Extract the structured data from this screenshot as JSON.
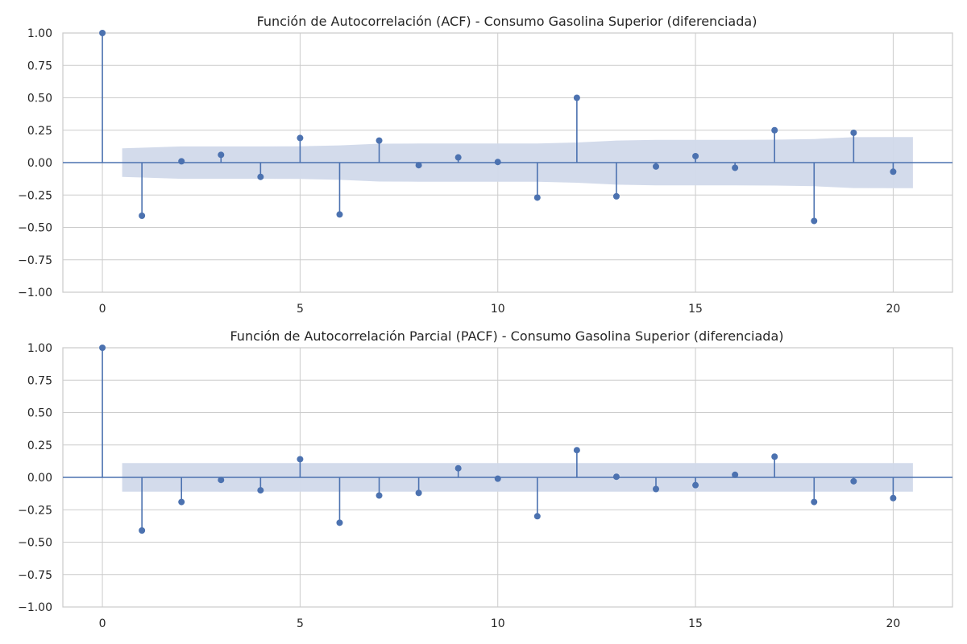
{
  "chart_data": [
    {
      "type": "stem",
      "title": "Función de Autocorrelación (ACF) - Consumo Gasolina Superior (diferenciada)",
      "xlabel": "",
      "ylabel": "",
      "xlim": [
        -1,
        21.5
      ],
      "ylim": [
        -1.0,
        1.0
      ],
      "x_ticks": [
        "0",
        "5",
        "10",
        "15",
        "20"
      ],
      "y_ticks": [
        "1.00",
        "0.75",
        "0.50",
        "0.25",
        "0.00",
        "−0.25",
        "−0.50",
        "−0.75",
        "−1.00"
      ],
      "grid": true,
      "colors": {
        "series": "#4c72b0",
        "band": "#d1d9ea"
      },
      "lags": [
        0,
        1,
        2,
        3,
        4,
        5,
        6,
        7,
        8,
        9,
        10,
        11,
        12,
        13,
        14,
        15,
        16,
        17,
        18,
        19,
        20
      ],
      "values": [
        1.0,
        -0.41,
        0.01,
        0.06,
        -0.11,
        0.19,
        -0.4,
        0.17,
        -0.02,
        0.04,
        0.005,
        -0.27,
        0.5,
        -0.26,
        -0.03,
        0.05,
        -0.04,
        0.25,
        -0.45,
        0.23,
        -0.07
      ],
      "confidence_band": {
        "lags": [
          0.5,
          1,
          2,
          3,
          4,
          5,
          6,
          7,
          8,
          9,
          10,
          11,
          12,
          13,
          14,
          15,
          16,
          17,
          18,
          19,
          20,
          20.5
        ],
        "upper": [
          0.11,
          0.115,
          0.125,
          0.125,
          0.125,
          0.126,
          0.133,
          0.146,
          0.147,
          0.147,
          0.147,
          0.148,
          0.155,
          0.17,
          0.175,
          0.176,
          0.176,
          0.177,
          0.182,
          0.196,
          0.197,
          0.197
        ]
      }
    },
    {
      "type": "stem",
      "title": "Función de Autocorrelación Parcial (PACF) - Consumo Gasolina Superior (diferenciada)",
      "xlabel": "",
      "ylabel": "",
      "xlim": [
        -1,
        21.5
      ],
      "ylim": [
        -1.0,
        1.0
      ],
      "x_ticks": [
        "0",
        "5",
        "10",
        "15",
        "20"
      ],
      "y_ticks": [
        "1.00",
        "0.75",
        "0.50",
        "0.25",
        "0.00",
        "−0.25",
        "−0.50",
        "−0.75",
        "−1.00"
      ],
      "grid": true,
      "colors": {
        "series": "#4c72b0",
        "band": "#d1d9ea"
      },
      "lags": [
        0,
        1,
        2,
        3,
        4,
        5,
        6,
        7,
        8,
        9,
        10,
        11,
        12,
        13,
        14,
        15,
        16,
        17,
        18,
        19,
        20
      ],
      "values": [
        1.0,
        -0.41,
        -0.19,
        -0.02,
        -0.1,
        0.14,
        -0.35,
        -0.14,
        -0.12,
        0.07,
        -0.01,
        -0.3,
        0.21,
        0.005,
        -0.09,
        -0.06,
        0.02,
        0.16,
        -0.19,
        -0.03,
        -0.16
      ],
      "confidence_band": {
        "lags": [
          0.5,
          20.5
        ],
        "upper": [
          0.11,
          0.11
        ]
      }
    }
  ]
}
